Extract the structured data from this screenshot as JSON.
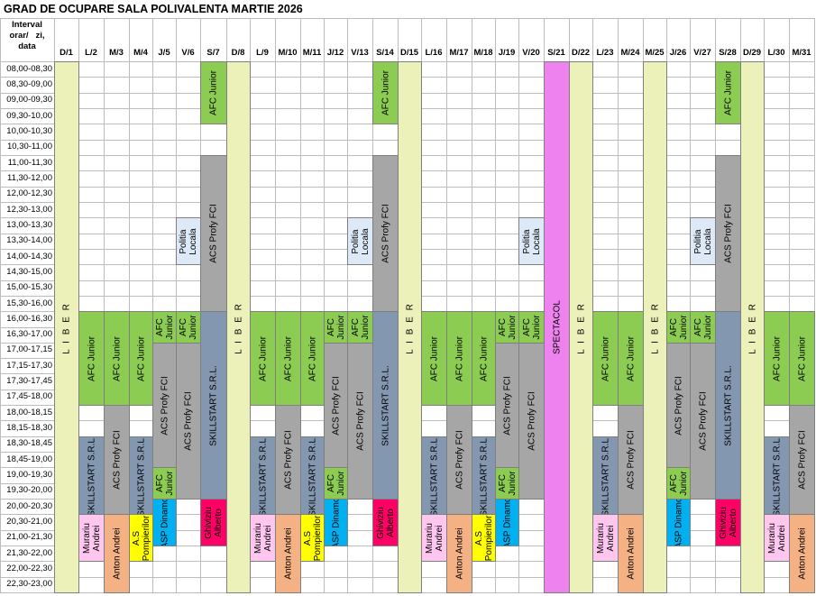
{
  "title": "GRAD DE OCUPARE SALA POLIVALENTA MARTIE 2026",
  "interval_header": [
    "Interval",
    "orar/   zi,",
    "data"
  ],
  "days": [
    "D/1",
    "L/2",
    "M/3",
    "M/4",
    "J/5",
    "V/6",
    "S/7",
    "D/8",
    "L/9",
    "M/10",
    "M/11",
    "J/12",
    "V/13",
    "S/14",
    "D/15",
    "L/16",
    "M/17",
    "M/18",
    "J/19",
    "V/20",
    "S/21",
    "D/22",
    "L/23",
    "M/24",
    "M/25",
    "J/26",
    "V/27",
    "S/28",
    "D/29",
    "L/30",
    "M/31"
  ],
  "time_slots": [
    "08,00-08,30",
    "08,30-09,00",
    "09,00-09,30",
    "09,30-10,00",
    "10,00-10,30",
    "10,30-11,00",
    "11,00-11,30",
    "11,30-12,00",
    "12,00-12,30",
    "12,30-13,00",
    "13,00-13,30",
    "13,30-14,00",
    "14,00-14,30",
    "14,30-15,00",
    "15,00-15,30",
    "15,30-16,00",
    "16,00-16,30",
    "16,30-17,00",
    "17,00-17,15",
    "17,15-17,30",
    "17,30-17,45",
    "17,45-18,00",
    "18,00-18,15",
    "18,15-18,30",
    "18,30-18,45",
    "18,45-19,00",
    "19,00-19,30",
    "19,30-20,00",
    "20,00-20,30",
    "20,30-21,00",
    "21,00-21,30",
    "21,30-22,00",
    "22,00-22,30",
    "22,30-23,00"
  ],
  "colors": {
    "liber": "#ebf1b8",
    "afc": "#8ccc52",
    "acs": "#a6a6a6",
    "skill": "#8497b0",
    "politia": "#dde9f7",
    "spectacol": "#ee82ee",
    "murariu": "#ffc6f0",
    "anton": "#f4b184",
    "pompierilor": "#ffff00",
    "asp": "#00b0f0",
    "ghiviziu": "#ff0066"
  },
  "labels": {
    "liber": "L I B E R",
    "afc_junior": "AFC Junior",
    "afc_junior_split": "AFC\nJunior",
    "acs": "ACS Profy FCI",
    "skill": "SKILLSTART S.R.L.",
    "politia": "Politia\nLocala",
    "spectacol": "SPECTACOL",
    "murariu": "Murariu\nAndrei",
    "anton": "Anton Andrei",
    "pompierilor": "A.S\nPompierilor",
    "asp": "ASP Dinamo",
    "ghiviziu": "Ghiviziu\nAlberto"
  },
  "blocks": [
    {
      "col": 0,
      "start": 0,
      "end": 34,
      "color": "liber",
      "label": "liber",
      "pos": "top"
    },
    {
      "col": 7,
      "start": 0,
      "end": 34,
      "color": "liber",
      "label": "liber",
      "pos": "top"
    },
    {
      "col": 14,
      "start": 0,
      "end": 34,
      "color": "liber",
      "label": "liber",
      "pos": "top"
    },
    {
      "col": 21,
      "start": 0,
      "end": 34,
      "color": "liber",
      "label": "liber",
      "pos": "top"
    },
    {
      "col": 24,
      "start": 0,
      "end": 34,
      "color": "liber",
      "label": "liber",
      "pos": "top"
    },
    {
      "col": 28,
      "start": 0,
      "end": 34,
      "color": "liber",
      "label": "liber",
      "pos": "top"
    },
    {
      "col": 20,
      "start": 0,
      "end": 34,
      "color": "spectacol",
      "label": "spectacol"
    },
    {
      "col": 6,
      "start": 0,
      "end": 4,
      "color": "afc",
      "label": "afc_junior"
    },
    {
      "col": 13,
      "start": 0,
      "end": 4,
      "color": "afc",
      "label": "afc_junior"
    },
    {
      "col": 27,
      "start": 0,
      "end": 4,
      "color": "afc",
      "label": "afc_junior"
    },
    {
      "col": 6,
      "start": 6,
      "end": 16,
      "color": "acs",
      "label": "acs"
    },
    {
      "col": 13,
      "start": 6,
      "end": 16,
      "color": "acs",
      "label": "acs"
    },
    {
      "col": 27,
      "start": 6,
      "end": 16,
      "color": "acs",
      "label": "acs"
    },
    {
      "col": 5,
      "start": 10,
      "end": 13,
      "color": "politia",
      "label": "politia"
    },
    {
      "col": 12,
      "start": 10,
      "end": 13,
      "color": "politia",
      "label": "politia"
    },
    {
      "col": 19,
      "start": 10,
      "end": 13,
      "color": "politia",
      "label": "politia"
    },
    {
      "col": 26,
      "start": 10,
      "end": 13,
      "color": "politia",
      "label": "politia"
    },
    {
      "col": 6,
      "start": 16,
      "end": 28,
      "color": "skill",
      "label": "skill"
    },
    {
      "col": 13,
      "start": 16,
      "end": 28,
      "color": "skill",
      "label": "skill"
    },
    {
      "col": 27,
      "start": 16,
      "end": 28,
      "color": "skill",
      "label": "skill"
    },
    {
      "col": 6,
      "start": 28,
      "end": 31,
      "color": "ghiviziu",
      "label": "ghiviziu"
    },
    {
      "col": 13,
      "start": 28,
      "end": 31,
      "color": "ghiviziu",
      "label": "ghiviziu"
    },
    {
      "col": 27,
      "start": 28,
      "end": 31,
      "color": "ghiviziu",
      "label": "ghiviziu"
    },
    {
      "col": 1,
      "start": 16,
      "end": 22,
      "color": "afc",
      "label": "afc_junior"
    },
    {
      "col": 1,
      "start": 24,
      "end": 29,
      "color": "skill",
      "label": "skill"
    },
    {
      "col": 1,
      "start": 29,
      "end": 32,
      "color": "murariu",
      "label": "murariu"
    },
    {
      "col": 2,
      "start": 16,
      "end": 22,
      "color": "afc",
      "label": "afc_junior"
    },
    {
      "col": 2,
      "start": 22,
      "end": 29,
      "color": "acs",
      "label": "acs"
    },
    {
      "col": 2,
      "start": 29,
      "end": 34,
      "color": "anton",
      "label": "anton"
    },
    {
      "col": 3,
      "start": 16,
      "end": 22,
      "color": "afc",
      "label": "afc_junior"
    },
    {
      "col": 3,
      "start": 24,
      "end": 29,
      "color": "skill",
      "label": "skill"
    },
    {
      "col": 3,
      "start": 29,
      "end": 32,
      "color": "pompierilor",
      "label": "pompierilor"
    },
    {
      "col": 4,
      "start": 16,
      "end": 18,
      "color": "afc",
      "label": "afc_junior_split"
    },
    {
      "col": 4,
      "start": 18,
      "end": 26,
      "color": "acs",
      "label": "acs"
    },
    {
      "col": 4,
      "start": 26,
      "end": 28,
      "color": "afc",
      "label": "afc_junior_split"
    },
    {
      "col": 4,
      "start": 28,
      "end": 31,
      "color": "asp",
      "label": "asp"
    },
    {
      "col": 5,
      "start": 16,
      "end": 18,
      "color": "afc",
      "label": "afc_junior_split"
    },
    {
      "col": 5,
      "start": 18,
      "end": 28,
      "color": "acs",
      "label": "acs"
    },
    {
      "col": 8,
      "start": 16,
      "end": 22,
      "color": "afc",
      "label": "afc_junior"
    },
    {
      "col": 8,
      "start": 24,
      "end": 29,
      "color": "skill",
      "label": "skill"
    },
    {
      "col": 8,
      "start": 29,
      "end": 32,
      "color": "murariu",
      "label": "murariu"
    },
    {
      "col": 9,
      "start": 16,
      "end": 22,
      "color": "afc",
      "label": "afc_junior"
    },
    {
      "col": 9,
      "start": 22,
      "end": 29,
      "color": "acs",
      "label": "acs"
    },
    {
      "col": 9,
      "start": 29,
      "end": 34,
      "color": "anton",
      "label": "anton"
    },
    {
      "col": 10,
      "start": 16,
      "end": 22,
      "color": "afc",
      "label": "afc_junior"
    },
    {
      "col": 10,
      "start": 24,
      "end": 29,
      "color": "skill",
      "label": "skill"
    },
    {
      "col": 10,
      "start": 29,
      "end": 32,
      "color": "pompierilor",
      "label": "pompierilor"
    },
    {
      "col": 11,
      "start": 16,
      "end": 18,
      "color": "afc",
      "label": "afc_junior_split"
    },
    {
      "col": 11,
      "start": 18,
      "end": 26,
      "color": "acs",
      "label": "acs"
    },
    {
      "col": 11,
      "start": 26,
      "end": 28,
      "color": "afc",
      "label": "afc_junior_split"
    },
    {
      "col": 11,
      "start": 28,
      "end": 31,
      "color": "asp",
      "label": "asp"
    },
    {
      "col": 12,
      "start": 16,
      "end": 18,
      "color": "afc",
      "label": "afc_junior_split"
    },
    {
      "col": 12,
      "start": 18,
      "end": 28,
      "color": "acs",
      "label": "acs"
    },
    {
      "col": 15,
      "start": 16,
      "end": 22,
      "color": "afc",
      "label": "afc_junior"
    },
    {
      "col": 15,
      "start": 24,
      "end": 29,
      "color": "skill",
      "label": "skill"
    },
    {
      "col": 15,
      "start": 29,
      "end": 32,
      "color": "murariu",
      "label": "murariu"
    },
    {
      "col": 16,
      "start": 16,
      "end": 22,
      "color": "afc",
      "label": "afc_junior"
    },
    {
      "col": 16,
      "start": 22,
      "end": 29,
      "color": "acs",
      "label": "acs"
    },
    {
      "col": 16,
      "start": 29,
      "end": 34,
      "color": "anton",
      "label": "anton"
    },
    {
      "col": 17,
      "start": 16,
      "end": 22,
      "color": "afc",
      "label": "afc_junior"
    },
    {
      "col": 17,
      "start": 24,
      "end": 29,
      "color": "skill",
      "label": "skill"
    },
    {
      "col": 17,
      "start": 29,
      "end": 32,
      "color": "pompierilor",
      "label": "pompierilor"
    },
    {
      "col": 18,
      "start": 16,
      "end": 18,
      "color": "afc",
      "label": "afc_junior_split"
    },
    {
      "col": 18,
      "start": 18,
      "end": 26,
      "color": "acs",
      "label": "acs"
    },
    {
      "col": 18,
      "start": 26,
      "end": 28,
      "color": "afc",
      "label": "afc_junior_split"
    },
    {
      "col": 18,
      "start": 28,
      "end": 31,
      "color": "asp",
      "label": "asp"
    },
    {
      "col": 19,
      "start": 16,
      "end": 18,
      "color": "afc",
      "label": "afc_junior_split"
    },
    {
      "col": 19,
      "start": 18,
      "end": 28,
      "color": "acs",
      "label": "acs"
    },
    {
      "col": 22,
      "start": 16,
      "end": 22,
      "color": "afc",
      "label": "afc_junior"
    },
    {
      "col": 22,
      "start": 24,
      "end": 29,
      "color": "skill",
      "label": "skill"
    },
    {
      "col": 22,
      "start": 29,
      "end": 32,
      "color": "murariu",
      "label": "murariu"
    },
    {
      "col": 23,
      "start": 16,
      "end": 22,
      "color": "afc",
      "label": "afc_junior"
    },
    {
      "col": 23,
      "start": 22,
      "end": 29,
      "color": "acs",
      "label": "acs"
    },
    {
      "col": 23,
      "start": 29,
      "end": 34,
      "color": "anton",
      "label": "anton"
    },
    {
      "col": 25,
      "start": 16,
      "end": 18,
      "color": "afc",
      "label": "afc_junior_split"
    },
    {
      "col": 25,
      "start": 18,
      "end": 26,
      "color": "acs",
      "label": "acs"
    },
    {
      "col": 25,
      "start": 26,
      "end": 28,
      "color": "afc",
      "label": "afc_junior_split"
    },
    {
      "col": 25,
      "start": 28,
      "end": 31,
      "color": "asp",
      "label": "asp"
    },
    {
      "col": 26,
      "start": 16,
      "end": 18,
      "color": "afc",
      "label": "afc_junior_split"
    },
    {
      "col": 26,
      "start": 18,
      "end": 28,
      "color": "acs",
      "label": "acs"
    },
    {
      "col": 29,
      "start": 16,
      "end": 22,
      "color": "afc",
      "label": "afc_junior"
    },
    {
      "col": 29,
      "start": 24,
      "end": 29,
      "color": "skill",
      "label": "skill"
    },
    {
      "col": 29,
      "start": 29,
      "end": 32,
      "color": "murariu",
      "label": "murariu"
    },
    {
      "col": 30,
      "start": 16,
      "end": 22,
      "color": "afc",
      "label": "afc_junior"
    },
    {
      "col": 30,
      "start": 22,
      "end": 29,
      "color": "acs",
      "label": "acs"
    },
    {
      "col": 30,
      "start": 29,
      "end": 34,
      "color": "anton",
      "label": "anton"
    }
  ]
}
